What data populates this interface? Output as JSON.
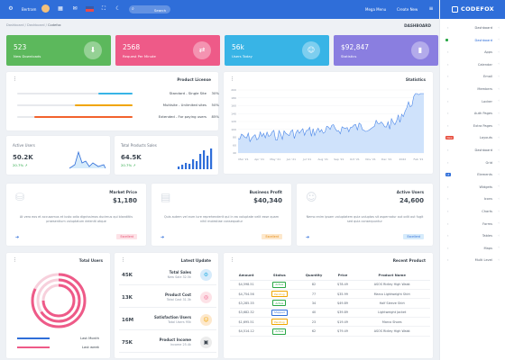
{
  "topbar": {
    "mega_menu": "Mega Menu",
    "create_new": "Create New",
    "user_name": "Bertram",
    "search_placeholder": "Search"
  },
  "brand": "CODEFOX",
  "sidebar": {
    "items": [
      {
        "label": "Dashboard",
        "icon": "dashboard-icon",
        "arrow": true
      },
      {
        "label": "Dashboard",
        "icon": "layout-icon",
        "badge": "",
        "active": true
      },
      {
        "label": "Apps",
        "icon": "apps-icon"
      },
      {
        "label": "Calendar",
        "icon": "calendar-icon"
      },
      {
        "label": "Email",
        "icon": "mail-icon"
      },
      {
        "label": "Members",
        "icon": "users-icon"
      },
      {
        "label": "Locker",
        "icon": "lock-icon"
      },
      {
        "label": "Auth Pages",
        "icon": "key-icon"
      },
      {
        "label": "Extra Pages",
        "icon": "file-icon"
      },
      {
        "label": "Layouts",
        "icon": "grid-icon",
        "badge": "New",
        "badge_color": "#e74c3c"
      },
      {
        "label": "Dashboard",
        "icon": "home-icon"
      },
      {
        "label": "Grid",
        "icon": "table-icon"
      },
      {
        "label": "Elements",
        "icon": "layers-icon",
        "badge": "UI",
        "badge_color": "#2f6ed9"
      },
      {
        "label": "Widgets",
        "icon": "widget-icon"
      },
      {
        "label": "Icons",
        "icon": "star-icon"
      },
      {
        "label": "Charts",
        "icon": "chart-icon"
      },
      {
        "label": "Forms",
        "icon": "form-icon"
      },
      {
        "label": "Tables",
        "icon": "table-icon"
      },
      {
        "label": "Maps",
        "icon": "map-icon"
      },
      {
        "label": "Multi Level",
        "icon": "menu-icon"
      }
    ]
  },
  "breadcrumb": {
    "home": "Dashboard",
    "level1": "Dashboard",
    "current": "Codefox"
  },
  "page_title": "DASHBOARD",
  "stats": [
    {
      "value": "523",
      "label": "New Downloads",
      "color": "#5cb85c",
      "icon": "download-icon",
      "glyph": "⬇"
    },
    {
      "value": "2568",
      "label": "Request Per Minute",
      "color": "#ee5a88",
      "icon": "shuffle-icon",
      "glyph": "⇄"
    },
    {
      "value": "56k",
      "label": "Users Today",
      "color": "#38b4e6",
      "icon": "users-icon",
      "glyph": "☺"
    },
    {
      "value": "$92,847",
      "label": "Statistics",
      "color": "#8a7ee0",
      "icon": "bar-chart-icon",
      "glyph": "▮"
    }
  ],
  "product_license": {
    "title": "Product License",
    "rows": [
      {
        "name": "Standard - Single Site",
        "percent": "30%",
        "fill": 0.3,
        "color": "#38b4e6"
      },
      {
        "name": "Multisite - Unlimited sites",
        "percent": "50%",
        "fill": 0.5,
        "color": "#f0a500"
      },
      {
        "name": "Extended - For paying users",
        "percent": "85%",
        "fill": 0.85,
        "color": "#f2622c"
      }
    ]
  },
  "statistics": {
    "title": "Statistics",
    "ylabels": [
      "200",
      "180",
      "160",
      "140",
      "120",
      "100",
      "80",
      "60",
      "40"
    ],
    "xlabels": [
      "Mar '21",
      "Apr '21",
      "May '21",
      "Jun '21",
      "Jul '21",
      "Aug '21",
      "Sep '21",
      "Oct '21",
      "Nov '21",
      "Dec '21",
      "2022",
      "Feb '21"
    ]
  },
  "active_users": {
    "title": "Active Users",
    "value": "50.2K",
    "change": "20.7%"
  },
  "total_sales": {
    "title": "Total Products Sales",
    "value": "64.5K",
    "change": "20.7%"
  },
  "market_price": {
    "title": "Market Price",
    "value": "$1,180",
    "desc": "At vero eos et accusamus et iusto odio dignissimos ducimus qui blanditiis praesentium voluptatum deleniti atque",
    "badge": "Excellent",
    "badge_bg": "#fde2e7",
    "badge_fg": "#e74c6f"
  },
  "business_profit": {
    "title": "Business Profit",
    "value": "$40,340",
    "desc": "Quis autem vel eum iure reprehenderit qui in ea voluptate velit esse quam nihil molestiae consequatur",
    "badge": "Excellent",
    "badge_bg": "#fde8cc",
    "badge_fg": "#e48a12"
  },
  "active_users2": {
    "title": "Active Users",
    "value": "24,600",
    "desc": "Nemo enim ipsam voluptatem quia voluptas sit aspernatur aut odit aut fugit sed quia consequuntur",
    "badge": "Excellent",
    "badge_bg": "#d6ebfb",
    "badge_fg": "#2f6ed9"
  },
  "total_users": {
    "title": "Total Users",
    "legend": [
      {
        "label": "Last Month",
        "color": "#2f6ed9"
      },
      {
        "label": "Last week",
        "color": "#ee5a88"
      }
    ]
  },
  "latest_update": {
    "title": "Latest Update",
    "rows": [
      {
        "value": "45K",
        "title": "Total Sales",
        "sub": "New Sale 32.5k",
        "color": "#d6ebfb",
        "fg": "#38b4e6",
        "glyph": "⚙"
      },
      {
        "value": "13K",
        "title": "Product Cost",
        "sub": "Total Cost 31.3k",
        "color": "#fde2e7",
        "fg": "#ee5a88",
        "glyph": "◎"
      },
      {
        "value": "16M",
        "title": "Satisfaction Users",
        "sub": "Total Users 95k",
        "color": "#fde8cc",
        "fg": "#f0a500",
        "glyph": "☺"
      },
      {
        "value": "75K",
        "title": "Product Income",
        "sub": "Income 25.4k",
        "color": "#ececec",
        "fg": "#3d4650",
        "glyph": "▣"
      }
    ]
  },
  "recent_product": {
    "title": "Recent Product",
    "columns": [
      "Amount",
      "Status",
      "Quantity",
      "Price",
      "Product Name"
    ],
    "rows": [
      {
        "amount": "$4,598.51",
        "status": "Active",
        "status_color": "#28a745",
        "qty": "82",
        "price": "$78.49",
        "name": "ASOS Ridley High Waist"
      },
      {
        "amount": "$4,754.56",
        "status": "Pending",
        "status_color": "#f0a500",
        "qty": "77",
        "price": "$35.99",
        "name": "Marco Lightweight Shirt"
      },
      {
        "amount": "$3,285.35",
        "status": "Active",
        "status_color": "#28a745",
        "qty": "34",
        "price": "$49.89",
        "name": "Half Sleeve Shirt"
      },
      {
        "amount": "$3,682.32",
        "status": "Shipped",
        "status_color": "#2f6ed9",
        "qty": "40",
        "price": "$39.89",
        "name": "Lightweight Jacket"
      },
      {
        "amount": "$1,695.51",
        "status": "Pending",
        "status_color": "#f0a500",
        "qty": "23",
        "price": "$19.49",
        "name": "Marco Shoes"
      },
      {
        "amount": "$4,514.12",
        "status": "Active",
        "status_color": "#28a745",
        "qty": "62",
        "price": "$79.49",
        "name": "ASOS Ridley High Waist"
      }
    ]
  }
}
